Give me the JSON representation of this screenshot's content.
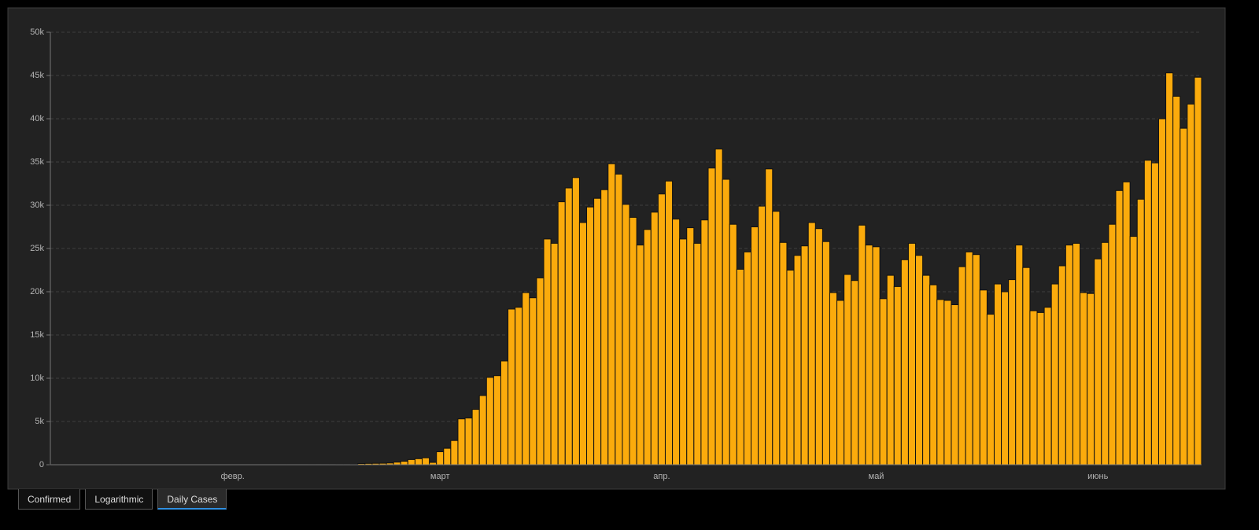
{
  "chart_data": {
    "type": "bar",
    "color": "#fbab0c",
    "grid": true,
    "ylim": [
      0,
      50000
    ],
    "yticks": [
      0,
      {
        "value": 5000,
        "label": "5k"
      },
      {
        "value": 10000,
        "label": "10k"
      },
      {
        "value": 15000,
        "label": "15k"
      },
      {
        "value": 20000,
        "label": "20k"
      },
      {
        "value": 25000,
        "label": "25k"
      },
      {
        "value": 30000,
        "label": "30k"
      },
      {
        "value": 35000,
        "label": "35k"
      },
      {
        "value": 40000,
        "label": "40k"
      },
      {
        "value": 45000,
        "label": "45k"
      },
      {
        "value": 50000,
        "label": "50k"
      }
    ],
    "categories": [
      null,
      null,
      null,
      null,
      null,
      null,
      null,
      null,
      null,
      null,
      null,
      null,
      null,
      null,
      null,
      null,
      null,
      null,
      null,
      null,
      null,
      null,
      null,
      null,
      null,
      "февр.",
      null,
      null,
      null,
      null,
      null,
      null,
      null,
      null,
      null,
      null,
      null,
      null,
      null,
      null,
      null,
      null,
      null,
      null,
      null,
      null,
      null,
      null,
      null,
      null,
      null,
      null,
      null,
      null,
      "март",
      null,
      null,
      null,
      null,
      null,
      null,
      null,
      null,
      null,
      null,
      null,
      null,
      null,
      null,
      null,
      null,
      null,
      null,
      null,
      null,
      null,
      null,
      null,
      null,
      null,
      null,
      null,
      null,
      null,
      null,
      "апр.",
      null,
      null,
      null,
      null,
      null,
      null,
      null,
      null,
      null,
      null,
      null,
      null,
      null,
      null,
      null,
      null,
      null,
      null,
      null,
      null,
      null,
      null,
      null,
      null,
      null,
      null,
      null,
      null,
      null,
      "май",
      null,
      null,
      null,
      null,
      null,
      null,
      null,
      null,
      null,
      null,
      null,
      null,
      null,
      null,
      null,
      null,
      null,
      null,
      null,
      null,
      null,
      null,
      null,
      null,
      null,
      null,
      null,
      null,
      null,
      null,
      "июнь",
      null,
      null,
      null,
      null,
      null,
      null,
      null,
      null,
      null,
      null,
      null,
      null,
      null,
      null
    ],
    "values": [
      1,
      0,
      1,
      0,
      3,
      0,
      0,
      0,
      0,
      2,
      1,
      0,
      3,
      0,
      0,
      1,
      0,
      0,
      0,
      0,
      1,
      0,
      0,
      0,
      0,
      1,
      0,
      1,
      0,
      0,
      0,
      0,
      1,
      2,
      0,
      0,
      6,
      3,
      9,
      14,
      20,
      24,
      40,
      130,
      150,
      160,
      170,
      200,
      300,
      400,
      600,
      700,
      800,
      270,
      1500,
      1900,
      2800,
      5300,
      5400,
      6400,
      8000,
      10100,
      10300,
      12000,
      18000,
      18200,
      19900,
      19300,
      21600,
      26100,
      25600,
      30400,
      32000,
      33200,
      28000,
      29800,
      30800,
      31800,
      34800,
      33600,
      30100,
      28600,
      25400,
      27200,
      29200,
      31300,
      32800,
      28400,
      26100,
      27400,
      25600,
      28300,
      34300,
      36500,
      33000,
      27800,
      22600,
      24600,
      27500,
      29900,
      34200,
      29300,
      25700,
      22500,
      24200,
      25300,
      28000,
      27300,
      25800,
      19900,
      19000,
      22000,
      21300,
      27700,
      25400,
      25200,
      19200,
      21900,
      20600,
      23700,
      25600,
      24200,
      21900,
      20800,
      19100,
      19000,
      18500,
      22900,
      24600,
      24300,
      20200,
      17400,
      20900,
      20000,
      21400,
      25400,
      22800,
      17800,
      17600,
      18200,
      20900,
      23000,
      25400,
      25600,
      19900,
      19800,
      23800,
      25700,
      27800,
      31700,
      32700,
      26400,
      30700,
      35200,
      34900,
      40000,
      45300,
      42600,
      38900,
      41700,
      44800
    ]
  },
  "tabs": [
    "Confirmed",
    "Logarithmic",
    "Daily Cases"
  ]
}
